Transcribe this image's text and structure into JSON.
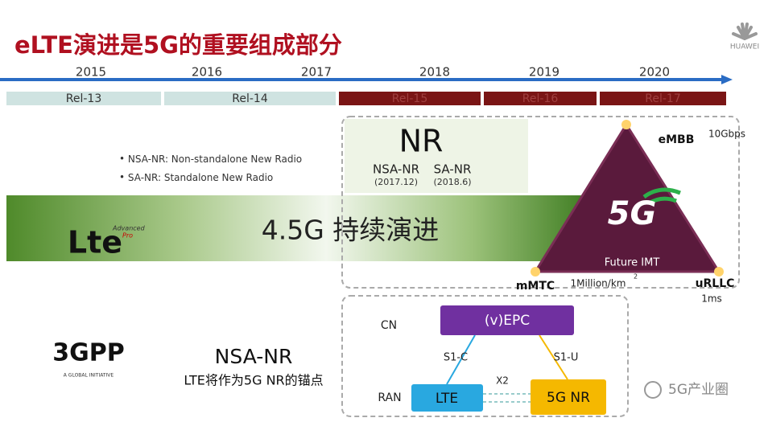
{
  "header": {
    "title": "eLTE演进是5G的重要组成部分",
    "logo": "HUAWEI"
  },
  "timeline": {
    "years": [
      "2015",
      "2016",
      "2017",
      "2018",
      "2019",
      "2020"
    ],
    "releases": [
      "Rel-13",
      "Rel-14",
      "Rel-15",
      "Rel-16",
      "Rel-17"
    ]
  },
  "bullets": [
    "NSA-NR: Non-standalone New Radio",
    "SA-NR: Standalone New Radio"
  ],
  "nr_box": {
    "title": "NR",
    "nsa": "NSA-NR",
    "nsa_date": "(2017.12)",
    "sa": "SA-NR",
    "sa_date": "(2018.6)"
  },
  "banner": {
    "text": "4.5G 持续演进",
    "logo": "Lte",
    "logo_sup": "Advanced",
    "logo_pro": "Pro"
  },
  "triangle": {
    "center": "5G",
    "caption": "Future IMT",
    "top": "eMBB",
    "top_value": "10Gbps",
    "left": "mMTC",
    "left_value": "1Million/km",
    "left_value_sup": "2",
    "right": "uRLLC",
    "right_value": "1ms"
  },
  "gpp": {
    "logo": "3GPP",
    "tagline": "A GLOBAL INITIATIVE",
    "title": "NSA-NR",
    "subtitle": "LTE将作为5G NR的锚点"
  },
  "diagram": {
    "cn": "CN",
    "ran": "RAN",
    "epc": "(v)EPC",
    "s1c": "S1-C",
    "s1u": "S1-U",
    "x2": "X2",
    "lte": "LTE",
    "nr": "5G NR"
  },
  "watermark": "5G产业圈"
}
